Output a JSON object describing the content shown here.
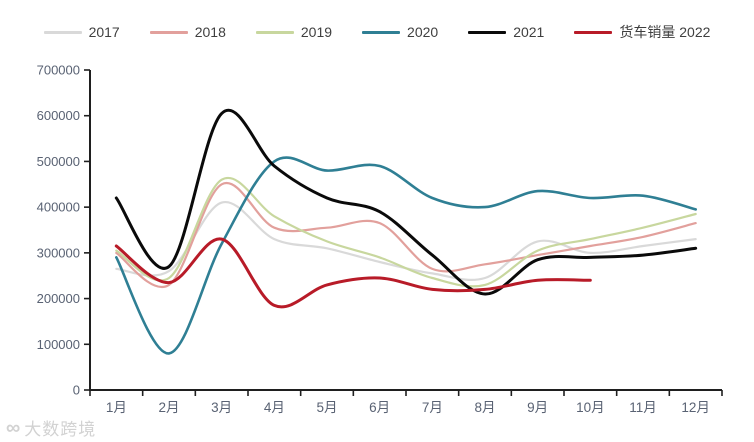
{
  "chart_data": {
    "type": "line",
    "title": "",
    "xlabel": "",
    "ylabel": "",
    "categories": [
      "1月",
      "2月",
      "3月",
      "4月",
      "5月",
      "6月",
      "7月",
      "8月",
      "9月",
      "10月",
      "11月",
      "12月"
    ],
    "y_ticks": [
      0,
      100000,
      200000,
      300000,
      400000,
      500000,
      600000,
      700000
    ],
    "ylim": [
      0,
      700000
    ],
    "grid": false,
    "smooth": true,
    "legend_position": "top",
    "series": [
      {
        "name": "2017",
        "color": "#d9d9d9",
        "width": 2.2,
        "values": [
          265000,
          260000,
          410000,
          330000,
          310000,
          280000,
          255000,
          245000,
          325000,
          300000,
          315000,
          330000
        ]
      },
      {
        "name": "2018",
        "color": "#e2a09c",
        "width": 2.2,
        "values": [
          300000,
          230000,
          450000,
          355000,
          355000,
          365000,
          265000,
          275000,
          295000,
          315000,
          335000,
          365000
        ]
      },
      {
        "name": "2019",
        "color": "#c8d79e",
        "width": 2.2,
        "values": [
          305000,
          245000,
          460000,
          380000,
          325000,
          290000,
          245000,
          230000,
          305000,
          330000,
          355000,
          385000
        ]
      },
      {
        "name": "2020",
        "color": "#2f7f94",
        "width": 2.6,
        "values": [
          290000,
          80000,
          320000,
          500000,
          480000,
          490000,
          420000,
          400000,
          435000,
          420000,
          425000,
          395000
        ]
      },
      {
        "name": "2021",
        "color": "#0a0a0a",
        "width": 3,
        "values": [
          420000,
          270000,
          605000,
          490000,
          420000,
          390000,
          295000,
          210000,
          285000,
          290000,
          295000,
          310000
        ]
      },
      {
        "name": "货车销量 2022",
        "color": "#b81b28",
        "width": 3,
        "values": [
          315000,
          235000,
          330000,
          185000,
          230000,
          245000,
          220000,
          220000,
          240000,
          240000,
          null,
          null
        ]
      }
    ]
  },
  "watermark": {
    "logo_symbol": "∞",
    "text": "大数跨境"
  },
  "colors": {
    "background": "#ffffff",
    "axis_line": "#1f1f1f",
    "tick_label": "#596273",
    "legend_label": "#3f3f3f",
    "watermark": "#d2d2d2"
  }
}
